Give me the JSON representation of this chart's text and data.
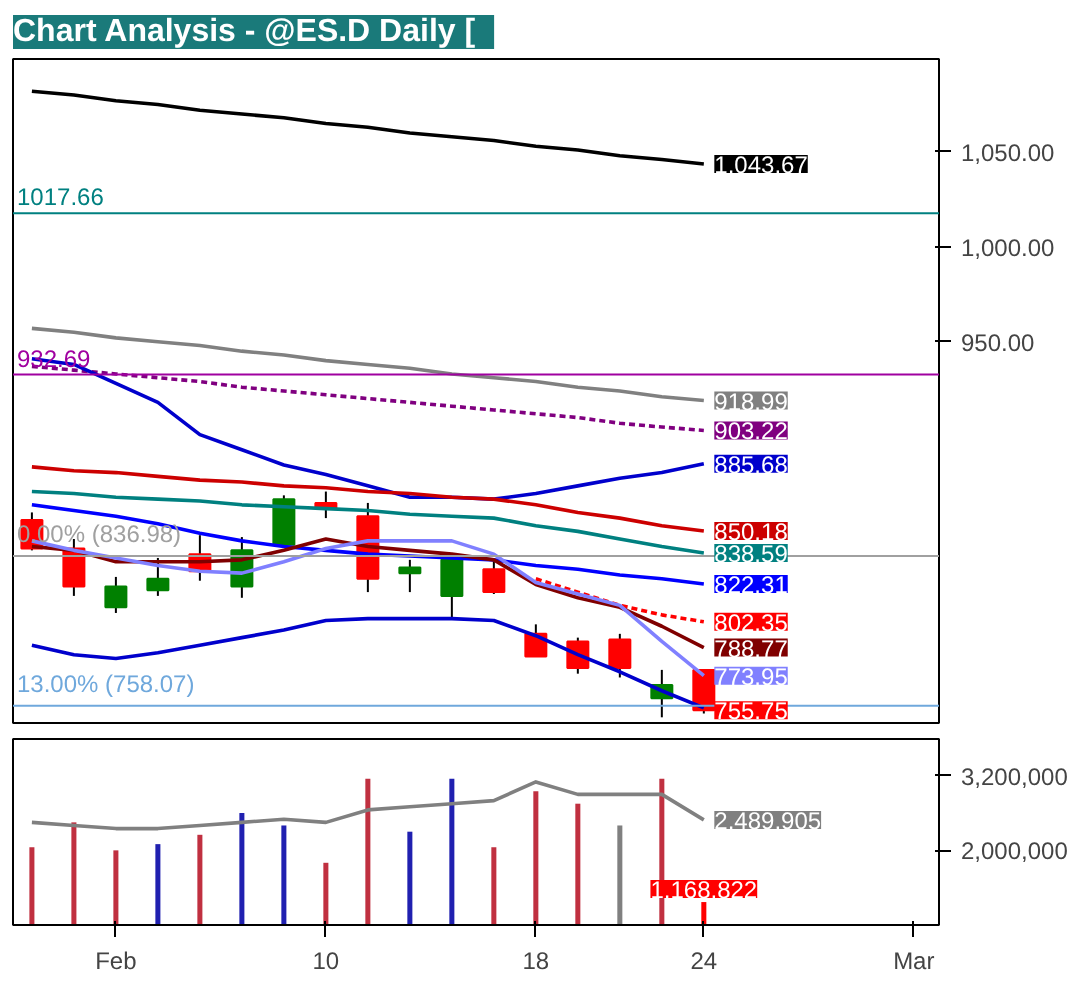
{
  "chart_data": [
    {
      "type": "candlestick",
      "title": "Chart Analysis - @ES.D  Daily  [",
      "categories": [
        null,
        null,
        null,
        null,
        null,
        null,
        null,
        null,
        null,
        null,
        null,
        null,
        null,
        null,
        null,
        null,
        null,
        null,
        null,
        null,
        null,
        null
      ],
      "ohlc": [
        [
          856,
          860,
          840,
          841
        ],
        [
          841,
          846,
          816,
          821
        ],
        [
          810,
          826,
          807,
          821
        ],
        [
          819,
          836,
          816,
          825
        ],
        [
          838,
          848,
          824,
          829
        ],
        [
          821,
          847,
          815,
          840
        ],
        [
          843,
          869,
          843,
          867
        ],
        [
          865,
          871,
          857,
          862
        ],
        [
          858,
          865,
          818,
          825
        ],
        [
          828,
          835,
          818,
          831
        ],
        [
          816,
          835,
          804,
          835
        ],
        [
          830,
          835,
          817,
          818
        ],
        [
          796,
          801,
          784,
          784
        ],
        [
          792,
          794,
          775,
          778
        ],
        [
          793,
          796,
          773,
          778
        ],
        [
          762,
          777,
          752,
          769
        ],
        [
          777,
          777,
          754,
          755.75
        ],
        null,
        null,
        null,
        null,
        null
      ],
      "colors": [
        "#ff0000",
        "#ff0000",
        "#008000",
        "#008000",
        "#ff0000",
        "#008000",
        "#008000",
        "#ff0000",
        "#ff0000",
        "#008000",
        "#008000",
        "#ff0000",
        "#ff0000",
        "#ff0000",
        "#ff0000",
        "#008000",
        "#ff0000",
        null,
        null,
        null,
        null,
        null
      ],
      "value_labels": [
        null,
        null,
        null,
        null,
        null,
        null,
        null,
        null,
        null,
        null,
        null,
        null,
        null,
        null,
        null,
        null,
        "755.75",
        null,
        null,
        null,
        null,
        null
      ],
      "series": [
        {
          "type": "line",
          "color": "#000000",
          "values": [
            1082,
            1080,
            1077,
            1075,
            1072,
            1070,
            1068,
            1065,
            1063,
            1060,
            1058,
            1056,
            1053,
            1051,
            1048,
            1046,
            1043.67,
            null,
            null,
            null,
            null,
            null
          ],
          "value_labels": [
            null,
            null,
            null,
            null,
            null,
            null,
            null,
            null,
            null,
            null,
            null,
            null,
            null,
            null,
            null,
            null,
            "1,043.67",
            null,
            null,
            null,
            null,
            null
          ]
        },
        {
          "type": "line",
          "color": "#808080",
          "values": [
            957,
            955,
            952,
            950,
            948,
            945,
            943,
            940,
            938,
            936,
            933,
            931,
            929,
            926,
            924,
            921,
            918.99,
            null,
            null,
            null,
            null,
            null
          ],
          "value_labels": [
            null,
            null,
            null,
            null,
            null,
            null,
            null,
            null,
            null,
            null,
            null,
            null,
            null,
            null,
            null,
            null,
            "918.99",
            null,
            null,
            null,
            null,
            null
          ]
        },
        {
          "type": "line",
          "color": "#800080",
          "line_style": "dashed",
          "values": [
            937,
            935,
            933,
            931,
            929,
            926,
            924,
            922,
            920,
            918,
            916,
            914,
            912,
            910,
            907,
            905,
            903.22,
            null,
            null,
            null,
            null,
            null
          ],
          "value_labels": [
            null,
            null,
            null,
            null,
            null,
            null,
            null,
            null,
            null,
            null,
            null,
            null,
            null,
            null,
            null,
            null,
            "903.22",
            null,
            null,
            null,
            null,
            null
          ]
        },
        {
          "type": "line",
          "color": "#0000cc",
          "values": [
            941,
            938,
            928,
            918,
            901,
            893,
            885,
            880,
            874,
            868,
            868,
            867,
            870,
            874,
            878,
            881,
            885.68,
            null,
            null,
            null,
            null,
            null
          ],
          "value_labels": [
            null,
            null,
            null,
            null,
            null,
            null,
            null,
            null,
            null,
            null,
            null,
            null,
            null,
            null,
            null,
            null,
            "885.68",
            null,
            null,
            null,
            null,
            null
          ]
        },
        {
          "type": "line",
          "color": "#cc0000",
          "values": [
            884,
            882,
            881,
            879,
            877,
            876,
            874,
            873,
            871,
            870,
            868,
            867,
            864,
            860,
            857,
            853,
            850.18,
            null,
            null,
            null,
            null,
            null
          ],
          "value_labels": [
            null,
            null,
            null,
            null,
            null,
            null,
            null,
            null,
            null,
            null,
            null,
            null,
            null,
            null,
            null,
            null,
            "850.18",
            null,
            null,
            null,
            null,
            null
          ]
        },
        {
          "type": "line",
          "color": "#008080",
          "values": [
            871,
            870,
            868,
            867,
            866,
            864,
            863,
            862,
            861,
            859,
            858,
            857,
            853,
            850,
            846,
            842,
            838.59,
            null,
            null,
            null,
            null,
            null
          ],
          "value_labels": [
            null,
            null,
            null,
            null,
            null,
            null,
            null,
            null,
            null,
            null,
            null,
            null,
            null,
            null,
            null,
            null,
            "838.59",
            null,
            null,
            null,
            null,
            null
          ]
        },
        {
          "type": "line",
          "color": "#0000ff",
          "values": [
            864,
            861,
            858,
            854,
            849,
            845,
            842,
            840,
            838,
            837,
            836,
            835,
            832,
            830,
            827,
            825,
            822.31,
            null,
            null,
            null,
            null,
            null
          ],
          "value_labels": [
            null,
            null,
            null,
            null,
            null,
            null,
            null,
            null,
            null,
            null,
            null,
            null,
            null,
            null,
            null,
            null,
            "822.31",
            null,
            null,
            null,
            null,
            null
          ]
        },
        {
          "type": "line",
          "color": "#ff0000",
          "line_style": "dashed",
          "values": [
            null,
            null,
            null,
            null,
            null,
            null,
            null,
            null,
            null,
            null,
            null,
            null,
            825,
            818,
            811,
            806,
            802.35,
            null,
            null,
            null,
            null,
            null
          ],
          "value_labels": [
            null,
            null,
            null,
            null,
            null,
            null,
            null,
            null,
            null,
            null,
            null,
            null,
            null,
            null,
            null,
            null,
            "802.35",
            null,
            null,
            null,
            null,
            null
          ]
        },
        {
          "type": "line",
          "color": "#800000",
          "values": [
            842,
            840,
            834,
            834,
            834,
            835,
            840,
            846,
            842,
            840,
            838,
            835,
            822,
            815,
            810,
            800,
            788.77,
            null,
            null,
            null,
            null,
            null
          ],
          "value_labels": [
            null,
            null,
            null,
            null,
            null,
            null,
            null,
            null,
            null,
            null,
            null,
            null,
            null,
            null,
            null,
            null,
            "788.77",
            null,
            null,
            null,
            null,
            null
          ]
        },
        {
          "type": "line",
          "color": "#8080ff",
          "values": [
            845,
            840,
            836,
            832,
            829,
            828,
            834,
            841,
            845,
            845,
            845,
            838,
            823,
            817,
            811,
            792,
            773.95,
            null,
            null,
            null,
            null,
            null
          ],
          "value_labels": [
            null,
            null,
            null,
            null,
            null,
            null,
            null,
            null,
            null,
            null,
            null,
            null,
            null,
            null,
            null,
            null,
            "773.95",
            null,
            null,
            null,
            null,
            null
          ]
        },
        {
          "type": "line",
          "color": "#0000cc",
          "values": [
            790,
            785,
            783,
            786,
            790,
            794,
            798,
            803,
            804,
            804,
            804,
            803,
            795,
            785,
            776,
            766,
            757,
            null,
            null,
            null,
            null,
            null
          ]
        }
      ],
      "ref_lines": [
        {
          "axis": "y",
          "value": 1017.66,
          "label": "1017.66",
          "color": "#008080"
        },
        {
          "axis": "y",
          "value": 932.69,
          "label": "932.69",
          "color": "#a000a0"
        },
        {
          "axis": "y",
          "value": 836.98,
          "label": "0.00% (836.98)",
          "color": "#a0a0a0"
        },
        {
          "axis": "y",
          "value": 758.07,
          "label": "13.00% (758.07)",
          "color": "#6fa8dc"
        }
      ],
      "ylim": [
        749,
        1099
      ],
      "yticks": [
        {
          "value": 1050,
          "label": "1,050.00"
        },
        {
          "value": 1000,
          "label": "1,000.00"
        },
        {
          "value": 950,
          "label": "950.00"
        }
      ],
      "tick_labels": "y",
      "grid": false
    },
    {
      "type": "bar",
      "categories": [
        null,
        null,
        "Feb",
        null,
        null,
        null,
        null,
        "10",
        null,
        null,
        null,
        null,
        "18",
        null,
        null,
        null,
        "24",
        null,
        null,
        null,
        null,
        "Mar"
      ],
      "series": [
        {
          "type": "bar",
          "values": [
            2050000,
            2450000,
            2000000,
            2100000,
            2250000,
            2600000,
            2400000,
            1800000,
            3150000,
            2300000,
            3150000,
            2050000,
            2950000,
            2750000,
            2400000,
            3150000,
            1168822,
            null,
            null,
            null,
            null,
            null
          ],
          "colors": [
            "#c03040",
            "#c03040",
            "#c03040",
            "#2020b0",
            "#c03040",
            "#2020b0",
            "#2020b0",
            "#c03040",
            "#c03040",
            "#2020b0",
            "#2020b0",
            "#c03040",
            "#c03040",
            "#c03040",
            "#808080",
            "#c03040",
            "#ff0000",
            null,
            null,
            null,
            null,
            null
          ],
          "value_labels": [
            null,
            null,
            null,
            null,
            null,
            null,
            null,
            null,
            null,
            null,
            null,
            null,
            null,
            null,
            null,
            null,
            "1,168,822",
            null,
            null,
            null,
            null,
            null
          ]
        },
        {
          "type": "line",
          "color": "#808080",
          "values": [
            2450000,
            2400000,
            2350000,
            2350000,
            2400000,
            2450000,
            2500000,
            2450000,
            2650000,
            2700000,
            2750000,
            2800000,
            3100000,
            2900000,
            2900000,
            2900000,
            2489905,
            null,
            null,
            null,
            null,
            null
          ],
          "value_labels": [
            null,
            null,
            null,
            null,
            null,
            null,
            null,
            null,
            null,
            null,
            null,
            null,
            null,
            null,
            null,
            null,
            "2,489,905",
            null,
            null,
            null,
            null,
            null
          ]
        }
      ],
      "ylim": [
        800000,
        3790000
      ],
      "yticks": [
        {
          "value": 3200000,
          "label": "3,200,000"
        },
        {
          "value": 2000000,
          "label": "2,000,000"
        }
      ],
      "grid": false
    }
  ]
}
